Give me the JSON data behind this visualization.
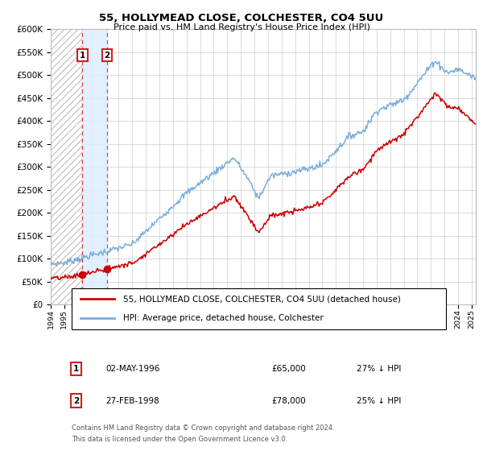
{
  "title": "55, HOLLYMEAD CLOSE, COLCHESTER, CO4 5UU",
  "subtitle": "Price paid vs. HM Land Registry's House Price Index (HPI)",
  "background_color": "#ffffff",
  "plot_bg_color": "#ffffff",
  "grid_color": "#cccccc",
  "hpi_color": "#7aadde",
  "price_color": "#cc0000",
  "sale1_date_num": 1996.34,
  "sale1_price": 65000,
  "sale2_date_num": 1998.16,
  "sale2_price": 78000,
  "ylim": [
    0,
    600000
  ],
  "xlim_start": 1994.0,
  "xlim_end": 2025.3,
  "legend_entry1": "55, HOLLYMEAD CLOSE, COLCHESTER, CO4 5UU (detached house)",
  "legend_entry2": "HPI: Average price, detached house, Colchester",
  "table_row1": [
    "1",
    "02-MAY-1996",
    "£65,000",
    "27% ↓ HPI"
  ],
  "table_row2": [
    "2",
    "27-FEB-1998",
    "£78,000",
    "25% ↓ HPI"
  ],
  "footnote1": "Contains HM Land Registry data © Crown copyright and database right 2024.",
  "footnote2": "This data is licensed under the Open Government Licence v3.0.",
  "dashed_color": "#dd4444",
  "shade_color": "#ddeeff",
  "hatch_color": "#cccccc"
}
